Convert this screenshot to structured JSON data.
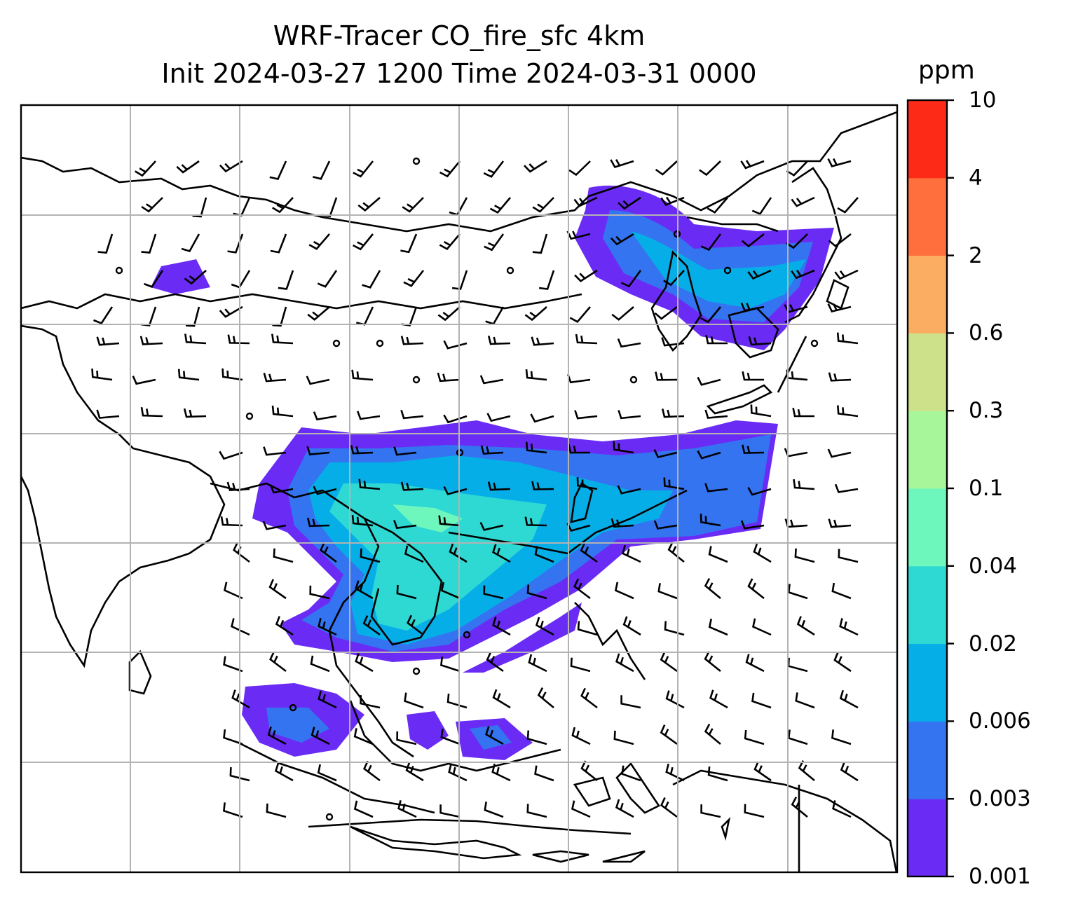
{
  "title": {
    "line1": "WRF-Tracer CO_fire_sfc 4km",
    "line2": "Init 2024-03-27 1200 Time 2024-03-31 0000"
  },
  "colorbar": {
    "unit": "ppm",
    "levels": [
      "0.001",
      "0.003",
      "0.006",
      "0.02",
      "0.04",
      "0.1",
      "0.3",
      "0.6",
      "2",
      "4",
      "10"
    ],
    "colors": [
      "#6a2cf5",
      "#3474f0",
      "#06aee8",
      "#2fd9d3",
      "#6ef7bd",
      "#a7f79a",
      "#cde08a",
      "#fbae62",
      "#fe6f3d",
      "#fe2a18"
    ]
  },
  "map": {
    "field": "CO_fire_sfc",
    "gridlines": true,
    "overlay": "wind barbs",
    "coastlines": true
  }
}
